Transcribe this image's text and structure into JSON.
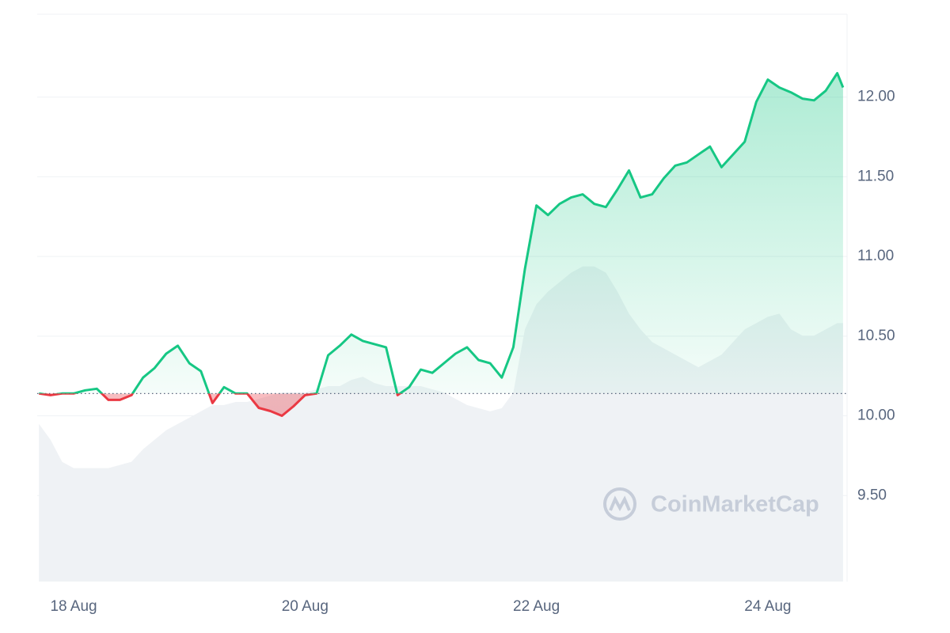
{
  "chart_data": {
    "type": "line",
    "watermark": "CoinMarketCap",
    "x": [
      17.7,
      17.8,
      17.9,
      18.0,
      18.1,
      18.2,
      18.3,
      18.4,
      18.5,
      18.6,
      18.7,
      18.8,
      18.9,
      19.0,
      19.1,
      19.2,
      19.3,
      19.4,
      19.5,
      19.6,
      19.7,
      19.8,
      19.9,
      20.0,
      20.1,
      20.2,
      20.3,
      20.4,
      20.5,
      20.6,
      20.7,
      20.8,
      20.9,
      21.0,
      21.1,
      21.2,
      21.3,
      21.4,
      21.5,
      21.6,
      21.7,
      21.8,
      21.9,
      22.0,
      22.1,
      22.2,
      22.3,
      22.4,
      22.5,
      22.6,
      22.7,
      22.8,
      22.9,
      23.0,
      23.1,
      23.2,
      23.3,
      23.4,
      23.5,
      23.6,
      23.7,
      23.8,
      23.9,
      24.0,
      24.1,
      24.2,
      24.3,
      24.4,
      24.5,
      24.6,
      24.65
    ],
    "series": [
      {
        "name": "Price",
        "color": "#16c784",
        "below_color": "#ea3943",
        "values": [
          10.14,
          10.13,
          10.14,
          10.14,
          10.16,
          10.17,
          10.1,
          10.1,
          10.13,
          10.24,
          10.3,
          10.39,
          10.44,
          10.33,
          10.28,
          10.08,
          10.18,
          10.14,
          10.14,
          10.05,
          10.03,
          10.0,
          10.06,
          10.13,
          10.14,
          10.38,
          10.44,
          10.51,
          10.47,
          10.45,
          10.43,
          10.13,
          10.18,
          10.29,
          10.27,
          10.33,
          10.39,
          10.43,
          10.35,
          10.33,
          10.24,
          10.43,
          10.92,
          11.32,
          11.26,
          11.33,
          11.37,
          11.39,
          11.33,
          11.31,
          11.42,
          11.54,
          11.37,
          11.39,
          11.49,
          11.57,
          11.59,
          11.64,
          11.69,
          11.56,
          11.64,
          11.72,
          11.97,
          12.11,
          12.06,
          12.03,
          11.99,
          11.98,
          12.04,
          12.15,
          12.06
        ]
      },
      {
        "name": "Volume",
        "color": "#eff2f5",
        "axis": "y2",
        "values": [
          50,
          45,
          38,
          36,
          36,
          36,
          36,
          37,
          38,
          42,
          45,
          48,
          50,
          52,
          54,
          56,
          56,
          57,
          57,
          58,
          59,
          60,
          60,
          60,
          61,
          62,
          62,
          64,
          65,
          63,
          62,
          62,
          62,
          62,
          61,
          60,
          58,
          56,
          55,
          54,
          55,
          60,
          80,
          88,
          92,
          95,
          98,
          100,
          100,
          98,
          92,
          85,
          80,
          76,
          74,
          72,
          70,
          68,
          70,
          72,
          76,
          80,
          82,
          84,
          85,
          80,
          78,
          78,
          80,
          82,
          82
        ]
      }
    ],
    "baseline": 10.14,
    "xlim": [
      17.685,
      24.685
    ],
    "xticks": [
      {
        "value": 18,
        "label": "18 Aug"
      },
      {
        "value": 20,
        "label": "20 Aug"
      },
      {
        "value": 22,
        "label": "22 Aug"
      },
      {
        "value": 24,
        "label": "24 Aug"
      }
    ],
    "ylim": [
      8.96,
      12.52
    ],
    "yticks": [
      {
        "value": 9.5,
        "label": "9.50"
      },
      {
        "value": 10,
        "label": "10.00"
      },
      {
        "value": 10.5,
        "label": "10.50"
      },
      {
        "value": 11,
        "label": "11.00"
      },
      {
        "value": 11.5,
        "label": "11.50"
      },
      {
        "value": 12,
        "label": "12.00"
      }
    ],
    "y2lim": [
      0,
      180
    ],
    "grid": true
  }
}
